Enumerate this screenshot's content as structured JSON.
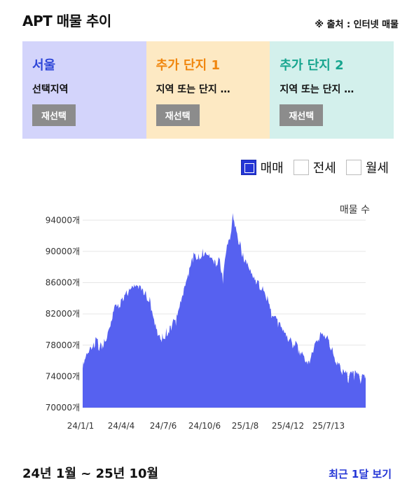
{
  "header": {
    "title": "APT 매물 추이",
    "source": "※ 출처 : 인터넷 매물"
  },
  "panels": [
    {
      "region": "서울",
      "subtitle": "선택지역",
      "button": "재선택"
    },
    {
      "region": "추가 단지 1",
      "subtitle": "지역 또는 단지 …",
      "button": "재선택"
    },
    {
      "region": "추가 단지 2",
      "subtitle": "지역 또는 단지 …",
      "button": "재선택"
    }
  ],
  "legend": [
    {
      "label": "매매",
      "checked": true
    },
    {
      "label": "전세",
      "checked": false
    },
    {
      "label": "월세",
      "checked": false
    }
  ],
  "footer": {
    "period": "24년 1월 ~ 25년 10월",
    "recent_button": "최근 1달 보기"
  },
  "chart_data": {
    "type": "area",
    "unit_label": "매물 수",
    "color": "#5661f0",
    "ylim": [
      70000,
      96000
    ],
    "yticks": [
      70000,
      74000,
      78000,
      82000,
      86000,
      90000,
      94000
    ],
    "ytick_suffix": "개",
    "xticks": [
      "24/1/1",
      "24/4/4",
      "24/7/6",
      "24/10/6",
      "25/1/8",
      "25/4/12",
      "25/7/13"
    ],
    "x_start": "2024-01-01",
    "x_end": "2025-10-20",
    "grid": true,
    "points": [
      [
        "2024-01-01",
        75000
      ],
      [
        "2024-01-10",
        76500
      ],
      [
        "2024-01-20",
        77200
      ],
      [
        "2024-01-31",
        78500
      ],
      [
        "2024-02-10",
        77800
      ],
      [
        "2024-02-20",
        78200
      ],
      [
        "2024-03-01",
        80000
      ],
      [
        "2024-03-10",
        82000
      ],
      [
        "2024-03-16",
        83500
      ],
      [
        "2024-03-25",
        83200
      ],
      [
        "2024-04-04",
        84000
      ],
      [
        "2024-04-15",
        84500
      ],
      [
        "2024-04-25",
        85000
      ],
      [
        "2024-05-05",
        85300
      ],
      [
        "2024-05-15",
        85000
      ],
      [
        "2024-05-25",
        84500
      ],
      [
        "2024-06-05",
        83500
      ],
      [
        "2024-06-15",
        81500
      ],
      [
        "2024-06-25",
        79500
      ],
      [
        "2024-07-06",
        78800
      ],
      [
        "2024-07-15",
        79800
      ],
      [
        "2024-07-25",
        80500
      ],
      [
        "2024-08-05",
        81000
      ],
      [
        "2024-08-15",
        83000
      ],
      [
        "2024-08-25",
        85000
      ],
      [
        "2024-09-05",
        87500
      ],
      [
        "2024-09-15",
        89500
      ],
      [
        "2024-09-25",
        89000
      ],
      [
        "2024-10-06",
        90000
      ],
      [
        "2024-10-16",
        90200
      ],
      [
        "2024-10-26",
        89500
      ],
      [
        "2024-11-06",
        88500
      ],
      [
        "2024-11-15",
        89000
      ],
      [
        "2024-11-22",
        86500
      ],
      [
        "2024-11-30",
        90000
      ],
      [
        "2024-12-10",
        91500
      ],
      [
        "2024-12-15",
        94500
      ],
      [
        "2024-12-20",
        93000
      ],
      [
        "2025-01-01",
        91000
      ],
      [
        "2025-01-08",
        89500
      ],
      [
        "2025-01-20",
        88500
      ],
      [
        "2025-02-01",
        87000
      ],
      [
        "2025-02-15",
        85500
      ],
      [
        "2025-03-01",
        84500
      ],
      [
        "2025-03-15",
        82000
      ],
      [
        "2025-04-01",
        80500
      ],
      [
        "2025-04-12",
        79500
      ],
      [
        "2025-04-25",
        78500
      ],
      [
        "2025-05-10",
        78000
      ],
      [
        "2025-05-25",
        77000
      ],
      [
        "2025-06-10",
        76000
      ],
      [
        "2025-06-25",
        78500
      ],
      [
        "2025-07-13",
        79500
      ],
      [
        "2025-07-25",
        79000
      ],
      [
        "2025-08-10",
        76000
      ],
      [
        "2025-08-25",
        74500
      ],
      [
        "2025-09-10",
        73800
      ],
      [
        "2025-09-25",
        74200
      ],
      [
        "2025-10-10",
        73500
      ],
      [
        "2025-10-20",
        74000
      ]
    ]
  }
}
